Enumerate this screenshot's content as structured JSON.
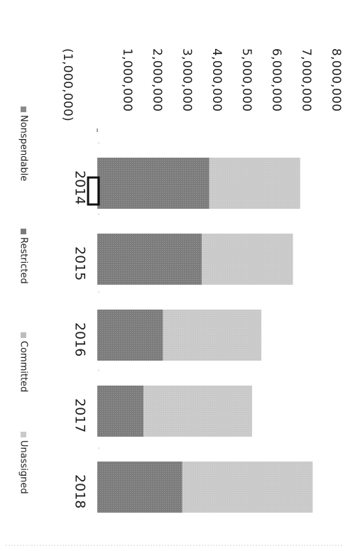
{
  "chart_data": {
    "type": "bar",
    "stacked": true,
    "orientation": "rotated-90-clockwise",
    "categories": [
      "2014",
      "2015",
      "2016",
      "2017",
      "2018"
    ],
    "series": [
      {
        "name": "Nonspendable",
        "values": [
          0,
          0,
          0,
          0,
          0
        ]
      },
      {
        "name": "Restricted",
        "values": [
          3750000,
          3500000,
          2200000,
          1550000,
          2850000
        ]
      },
      {
        "name": "Committed",
        "values": [
          0,
          0,
          0,
          0,
          0
        ]
      },
      {
        "name": "Unassigned",
        "values": [
          3050000,
          3060000,
          3300000,
          3640000,
          4370000
        ]
      }
    ],
    "y_ticks": [
      "8,000,000",
      "7,000,000",
      "6,000,000",
      "5,000,000",
      "4,000,000",
      "3,000,000",
      "2,000,000",
      "1,000,000",
      "",
      "(1,000,000)"
    ],
    "y_tick_values": [
      8000000,
      7000000,
      6000000,
      5000000,
      4000000,
      3000000,
      2000000,
      1000000,
      0,
      -1000000
    ],
    "ylim": [
      -1000000,
      8000000
    ],
    "legend_position": "bottom",
    "grid": false,
    "colors": {
      "Nonspendable": "#8a8a8a",
      "Restricted": "#7c7c7c",
      "Committed": "#bdbdbd",
      "Unassigned": "#c9c9c9"
    },
    "highlight": {
      "category": "2014",
      "note": "outlined box at baseline"
    }
  }
}
